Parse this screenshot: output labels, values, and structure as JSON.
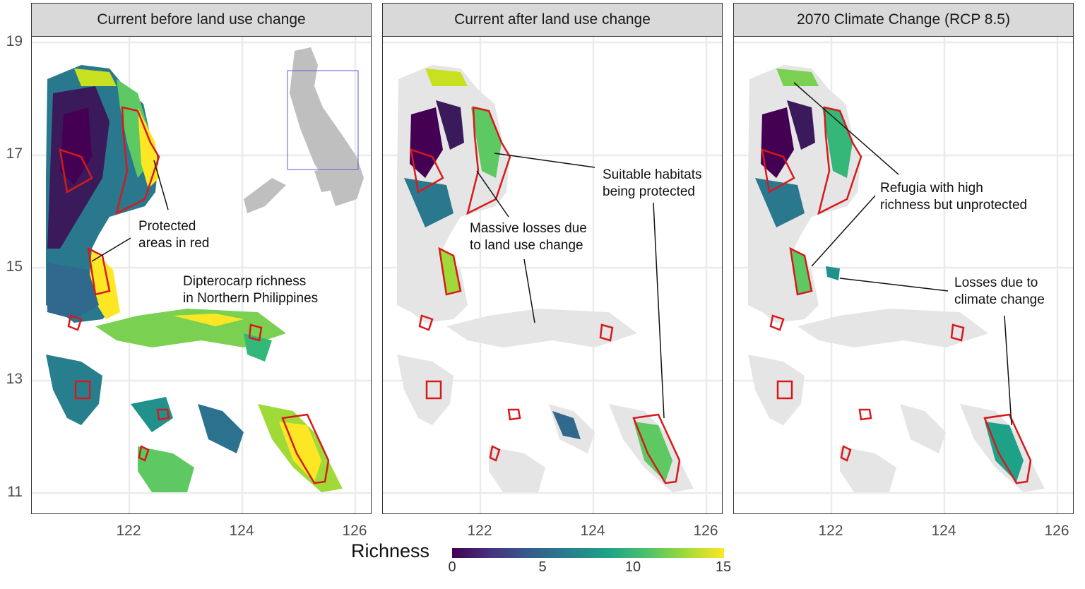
{
  "panels": [
    {
      "title": "Current before land use change"
    },
    {
      "title": "Current after land use change"
    },
    {
      "title": "2070 Climate Change (RCP 8.5)"
    }
  ],
  "y_ticks": [
    "19",
    "17",
    "15",
    "13",
    "11"
  ],
  "x_ticks": [
    "122",
    "124",
    "126"
  ],
  "annotations": {
    "protected_1": "Protected",
    "protected_2": "areas in red",
    "title_1": "Dipterocarp richness",
    "title_2": "in Northern Philippines",
    "suitable_1": "Suitable habitats",
    "suitable_2": "being protected",
    "massive_1": "Massive losses due",
    "massive_2": "to land use change",
    "refugia_1": "Refugia with high",
    "refugia_2": "richness but unprotected",
    "climate_1": "Losses due to",
    "climate_2": "climate change"
  },
  "legend": {
    "title": "Richness",
    "labels": [
      "0",
      "5",
      "10",
      "15"
    ],
    "colors": [
      "#440154",
      "#3b528b",
      "#21918c",
      "#5ec962",
      "#fde725"
    ]
  },
  "colors": {
    "protected_outline": "#d7191c",
    "land_background": "#e5e5e5",
    "inset_land": "#bfbfbf",
    "inset_box": "#5b5bd6"
  }
}
